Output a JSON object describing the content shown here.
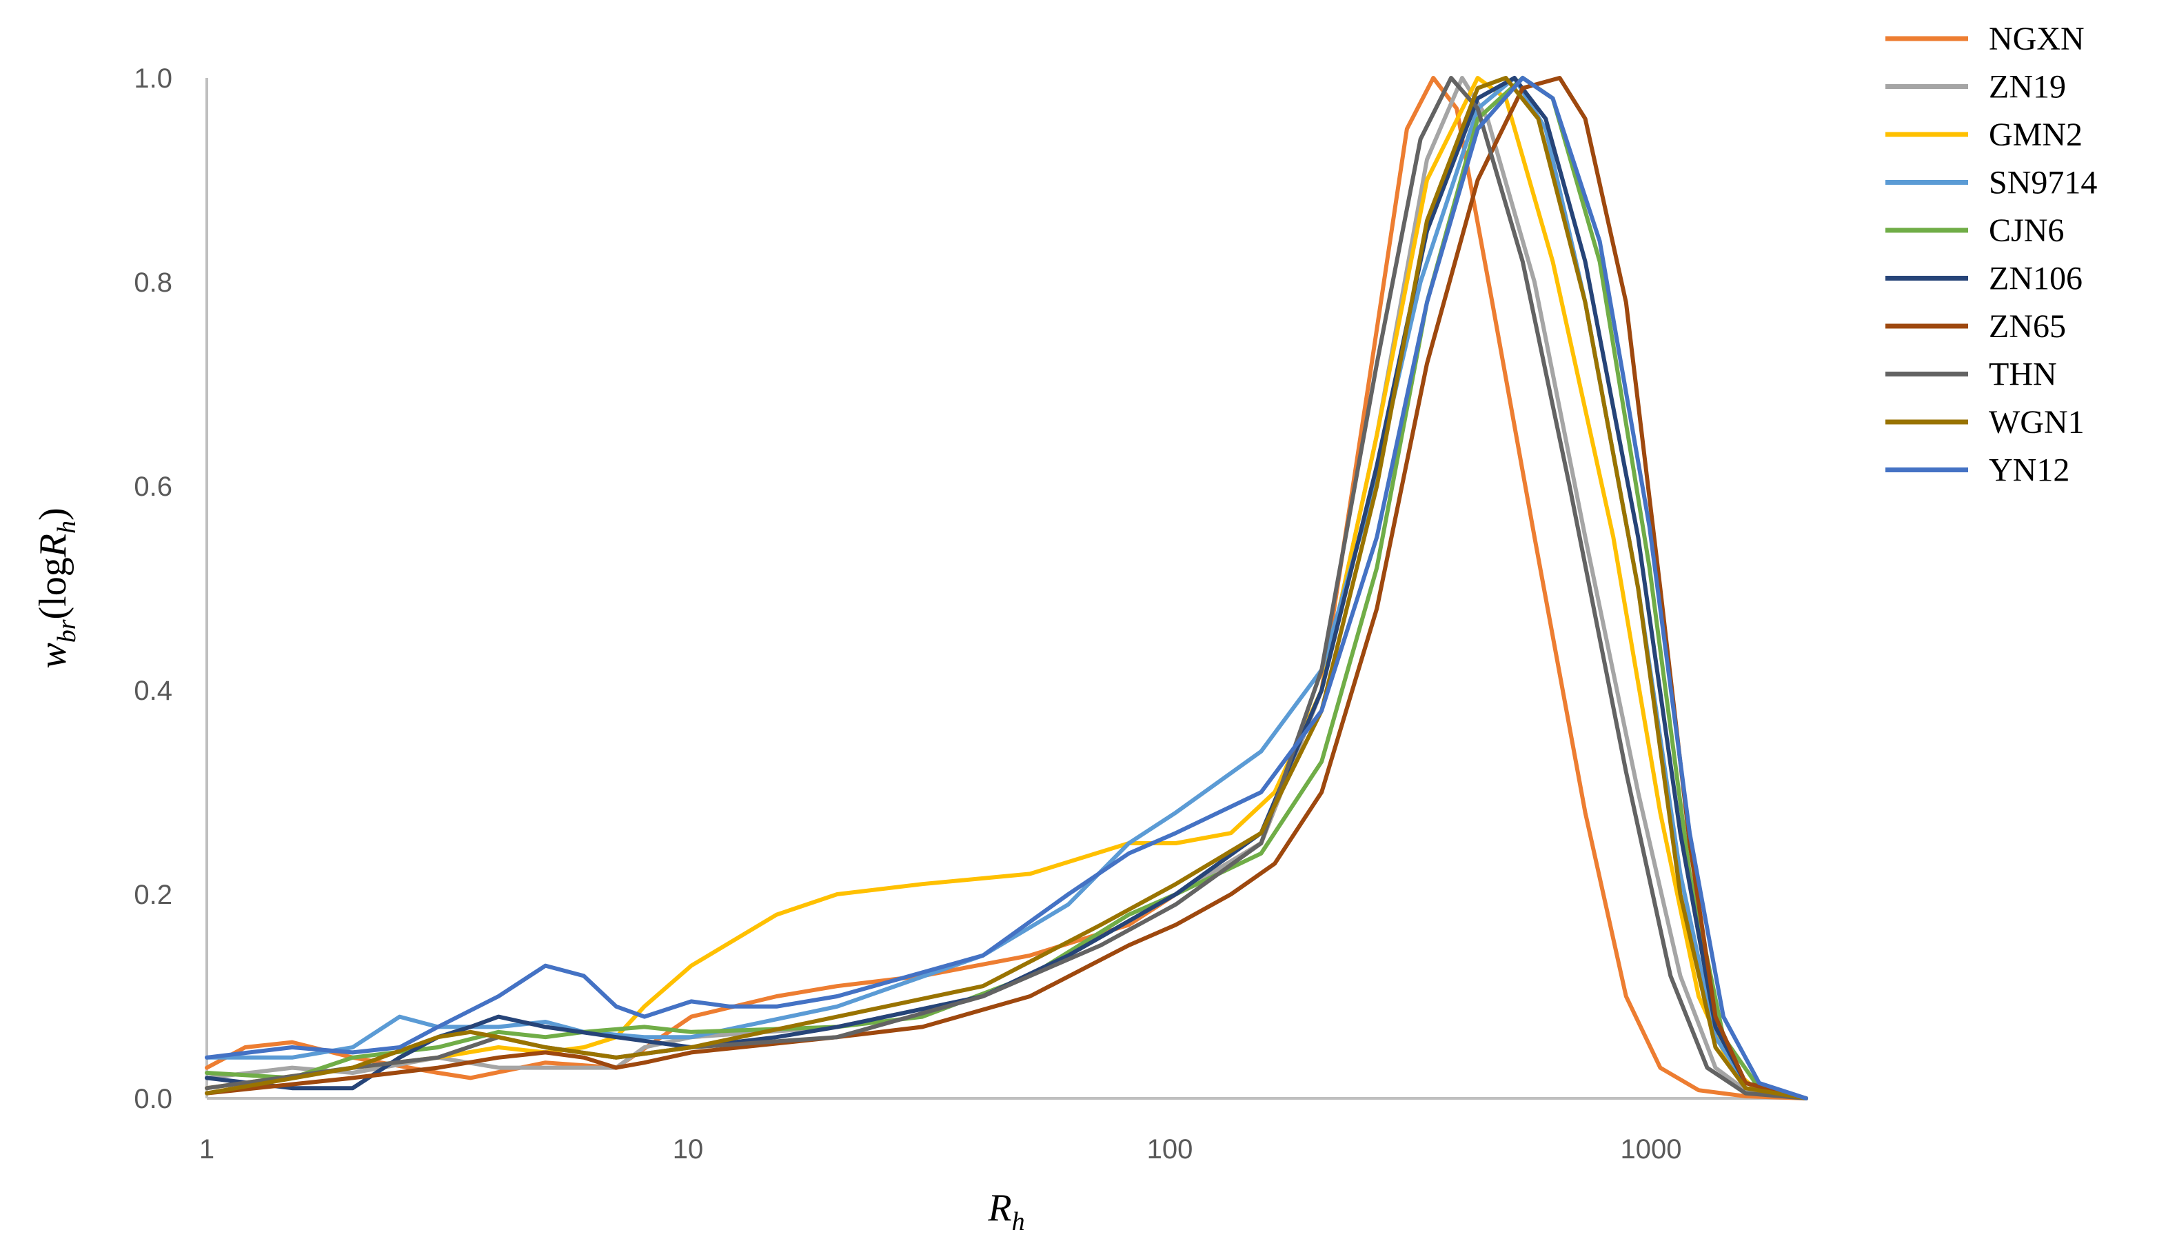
{
  "chart_data": {
    "type": "line",
    "xscale": "log",
    "xlim": [
      1,
      2000
    ],
    "ylim": [
      0,
      1.0
    ],
    "x_ticks": [
      "1",
      "10",
      "100",
      "1000"
    ],
    "y_ticks": [
      "0.0",
      "0.2",
      "0.4",
      "0.6",
      "0.8",
      "1.0"
    ],
    "xlabel": {
      "main": "R",
      "sub": "h"
    },
    "ylabel": {
      "main": "w",
      "sub": "br",
      "mid": "(log",
      "var": "R",
      "var_sub": "h",
      "end": ")"
    },
    "grid": false,
    "legend_position": "top-right",
    "series": [
      {
        "name": "NGXN",
        "color": "#ED7D31",
        "points": [
          [
            1,
            0.03
          ],
          [
            1.2,
            0.05
          ],
          [
            1.5,
            0.055
          ],
          [
            2,
            0.04
          ],
          [
            3,
            0.025
          ],
          [
            3.5,
            0.02
          ],
          [
            5,
            0.035
          ],
          [
            7,
            0.03
          ],
          [
            10,
            0.08
          ],
          [
            15,
            0.1
          ],
          [
            20,
            0.11
          ],
          [
            30,
            0.12
          ],
          [
            50,
            0.14
          ],
          [
            80,
            0.17
          ],
          [
            100,
            0.2
          ],
          [
            150,
            0.25
          ],
          [
            200,
            0.4
          ],
          [
            250,
            0.7
          ],
          [
            300,
            0.95
          ],
          [
            340,
            1.0
          ],
          [
            380,
            0.97
          ],
          [
            450,
            0.78
          ],
          [
            550,
            0.55
          ],
          [
            700,
            0.28
          ],
          [
            850,
            0.1
          ],
          [
            1000,
            0.03
          ],
          [
            1200,
            0.008
          ],
          [
            1500,
            0.002
          ],
          [
            2000,
            0
          ]
        ]
      },
      {
        "name": "ZN19",
        "color": "#A5A5A5",
        "points": [
          [
            1,
            0.02
          ],
          [
            1.5,
            0.03
          ],
          [
            2,
            0.025
          ],
          [
            3,
            0.04
          ],
          [
            4,
            0.03
          ],
          [
            5,
            0.03
          ],
          [
            7,
            0.03
          ],
          [
            8,
            0.05
          ],
          [
            10,
            0.06
          ],
          [
            20,
            0.07
          ],
          [
            40,
            0.1
          ],
          [
            60,
            0.14
          ],
          [
            100,
            0.2
          ],
          [
            150,
            0.25
          ],
          [
            200,
            0.4
          ],
          [
            260,
            0.65
          ],
          [
            330,
            0.92
          ],
          [
            390,
            1.0
          ],
          [
            440,
            0.96
          ],
          [
            550,
            0.8
          ],
          [
            700,
            0.55
          ],
          [
            900,
            0.3
          ],
          [
            1100,
            0.12
          ],
          [
            1300,
            0.03
          ],
          [
            1500,
            0.008
          ],
          [
            2000,
            0
          ]
        ]
      },
      {
        "name": "GMN2",
        "color": "#FFC000",
        "points": [
          [
            1,
            0.01
          ],
          [
            2,
            0.03
          ],
          [
            3,
            0.04
          ],
          [
            4,
            0.05
          ],
          [
            5,
            0.045
          ],
          [
            6,
            0.05
          ],
          [
            7,
            0.06
          ],
          [
            8,
            0.09
          ],
          [
            10,
            0.13
          ],
          [
            15,
            0.18
          ],
          [
            20,
            0.2
          ],
          [
            30,
            0.21
          ],
          [
            50,
            0.22
          ],
          [
            80,
            0.25
          ],
          [
            100,
            0.25
          ],
          [
            130,
            0.26
          ],
          [
            160,
            0.3
          ],
          [
            200,
            0.4
          ],
          [
            260,
            0.65
          ],
          [
            330,
            0.9
          ],
          [
            420,
            1.0
          ],
          [
            480,
            0.98
          ],
          [
            600,
            0.82
          ],
          [
            800,
            0.55
          ],
          [
            1000,
            0.28
          ],
          [
            1200,
            0.1
          ],
          [
            1400,
            0.03
          ],
          [
            1600,
            0.006
          ],
          [
            2000,
            0
          ]
        ]
      },
      {
        "name": "SN9714",
        "color": "#5B9BD5",
        "points": [
          [
            1,
            0.04
          ],
          [
            1.5,
            0.04
          ],
          [
            2,
            0.05
          ],
          [
            2.5,
            0.08
          ],
          [
            3,
            0.07
          ],
          [
            4,
            0.07
          ],
          [
            5,
            0.075
          ],
          [
            6,
            0.065
          ],
          [
            8,
            0.06
          ],
          [
            10,
            0.06
          ],
          [
            20,
            0.09
          ],
          [
            40,
            0.14
          ],
          [
            60,
            0.19
          ],
          [
            80,
            0.25
          ],
          [
            100,
            0.28
          ],
          [
            150,
            0.34
          ],
          [
            200,
            0.42
          ],
          [
            250,
            0.58
          ],
          [
            320,
            0.8
          ],
          [
            420,
            0.97
          ],
          [
            500,
            1.0
          ],
          [
            580,
            0.95
          ],
          [
            700,
            0.78
          ],
          [
            900,
            0.5
          ],
          [
            1100,
            0.22
          ],
          [
            1300,
            0.06
          ],
          [
            1500,
            0.015
          ],
          [
            2000,
            0
          ]
        ]
      },
      {
        "name": "CJN6",
        "color": "#70AD47",
        "points": [
          [
            1,
            0.025
          ],
          [
            1.5,
            0.02
          ],
          [
            2,
            0.04
          ],
          [
            3,
            0.05
          ],
          [
            4,
            0.065
          ],
          [
            5,
            0.06
          ],
          [
            6,
            0.065
          ],
          [
            8,
            0.07
          ],
          [
            10,
            0.065
          ],
          [
            20,
            0.07
          ],
          [
            30,
            0.08
          ],
          [
            50,
            0.12
          ],
          [
            80,
            0.18
          ],
          [
            100,
            0.2
          ],
          [
            150,
            0.24
          ],
          [
            200,
            0.33
          ],
          [
            260,
            0.52
          ],
          [
            330,
            0.78
          ],
          [
            420,
            0.96
          ],
          [
            520,
            1.0
          ],
          [
            600,
            0.98
          ],
          [
            750,
            0.82
          ],
          [
            950,
            0.52
          ],
          [
            1150,
            0.22
          ],
          [
            1350,
            0.06
          ],
          [
            1600,
            0.01
          ],
          [
            2000,
            0
          ]
        ]
      },
      {
        "name": "ZN106",
        "color": "#264478",
        "points": [
          [
            1,
            0.02
          ],
          [
            1.5,
            0.01
          ],
          [
            2,
            0.01
          ],
          [
            2.5,
            0.04
          ],
          [
            3,
            0.06
          ],
          [
            3.5,
            0.07
          ],
          [
            4,
            0.08
          ],
          [
            5,
            0.07
          ],
          [
            7,
            0.06
          ],
          [
            10,
            0.05
          ],
          [
            15,
            0.06
          ],
          [
            20,
            0.07
          ],
          [
            40,
            0.1
          ],
          [
            60,
            0.14
          ],
          [
            100,
            0.2
          ],
          [
            150,
            0.26
          ],
          [
            200,
            0.4
          ],
          [
            260,
            0.62
          ],
          [
            330,
            0.85
          ],
          [
            420,
            0.98
          ],
          [
            500,
            1.0
          ],
          [
            580,
            0.96
          ],
          [
            700,
            0.82
          ],
          [
            900,
            0.55
          ],
          [
            1100,
            0.26
          ],
          [
            1300,
            0.07
          ],
          [
            1500,
            0.015
          ],
          [
            2000,
            0
          ]
        ]
      },
      {
        "name": "ZN65",
        "color": "#9E480E",
        "points": [
          [
            1,
            0.005
          ],
          [
            2,
            0.02
          ],
          [
            3,
            0.03
          ],
          [
            4,
            0.04
          ],
          [
            5,
            0.045
          ],
          [
            6,
            0.04
          ],
          [
            7,
            0.03
          ],
          [
            8,
            0.035
          ],
          [
            10,
            0.045
          ],
          [
            20,
            0.06
          ],
          [
            30,
            0.07
          ],
          [
            50,
            0.1
          ],
          [
            80,
            0.15
          ],
          [
            100,
            0.17
          ],
          [
            130,
            0.2
          ],
          [
            160,
            0.23
          ],
          [
            200,
            0.3
          ],
          [
            260,
            0.48
          ],
          [
            330,
            0.72
          ],
          [
            420,
            0.9
          ],
          [
            520,
            0.99
          ],
          [
            620,
            1.0
          ],
          [
            700,
            0.96
          ],
          [
            850,
            0.78
          ],
          [
            1000,
            0.5
          ],
          [
            1150,
            0.25
          ],
          [
            1300,
            0.08
          ],
          [
            1500,
            0.015
          ],
          [
            2000,
            0
          ]
        ]
      },
      {
        "name": "THN",
        "color": "#636363",
        "points": [
          [
            1,
            0.01
          ],
          [
            2,
            0.03
          ],
          [
            3,
            0.04
          ],
          [
            4,
            0.06
          ],
          [
            5,
            0.05
          ],
          [
            7,
            0.04
          ],
          [
            10,
            0.05
          ],
          [
            20,
            0.06
          ],
          [
            40,
            0.1
          ],
          [
            70,
            0.15
          ],
          [
            100,
            0.19
          ],
          [
            150,
            0.25
          ],
          [
            200,
            0.42
          ],
          [
            260,
            0.72
          ],
          [
            320,
            0.94
          ],
          [
            370,
            1.0
          ],
          [
            420,
            0.97
          ],
          [
            520,
            0.82
          ],
          [
            650,
            0.6
          ],
          [
            850,
            0.32
          ],
          [
            1050,
            0.12
          ],
          [
            1250,
            0.03
          ],
          [
            1500,
            0.005
          ],
          [
            2000,
            0
          ]
        ]
      },
      {
        "name": "WGN1",
        "color": "#997300",
        "points": [
          [
            1,
            0.005
          ],
          [
            2,
            0.03
          ],
          [
            3,
            0.06
          ],
          [
            3.5,
            0.065
          ],
          [
            4,
            0.06
          ],
          [
            5,
            0.05
          ],
          [
            7,
            0.04
          ],
          [
            10,
            0.05
          ],
          [
            20,
            0.08
          ],
          [
            40,
            0.11
          ],
          [
            70,
            0.17
          ],
          [
            100,
            0.21
          ],
          [
            150,
            0.26
          ],
          [
            200,
            0.38
          ],
          [
            260,
            0.6
          ],
          [
            330,
            0.86
          ],
          [
            420,
            0.99
          ],
          [
            480,
            1.0
          ],
          [
            560,
            0.96
          ],
          [
            700,
            0.78
          ],
          [
            900,
            0.5
          ],
          [
            1100,
            0.2
          ],
          [
            1300,
            0.05
          ],
          [
            1500,
            0.01
          ],
          [
            2000,
            0
          ]
        ]
      },
      {
        "name": "YN12",
        "color": "#4472C4",
        "points": [
          [
            1,
            0.04
          ],
          [
            1.5,
            0.05
          ],
          [
            2,
            0.045
          ],
          [
            2.5,
            0.05
          ],
          [
            3,
            0.07
          ],
          [
            4,
            0.1
          ],
          [
            5,
            0.13
          ],
          [
            6,
            0.12
          ],
          [
            7,
            0.09
          ],
          [
            8,
            0.08
          ],
          [
            10,
            0.095
          ],
          [
            12,
            0.09
          ],
          [
            15,
            0.09
          ],
          [
            20,
            0.1
          ],
          [
            40,
            0.14
          ],
          [
            60,
            0.2
          ],
          [
            80,
            0.24
          ],
          [
            100,
            0.26
          ],
          [
            150,
            0.3
          ],
          [
            200,
            0.38
          ],
          [
            260,
            0.55
          ],
          [
            330,
            0.78
          ],
          [
            420,
            0.95
          ],
          [
            520,
            1.0
          ],
          [
            600,
            0.98
          ],
          [
            750,
            0.84
          ],
          [
            950,
            0.56
          ],
          [
            1150,
            0.26
          ],
          [
            1350,
            0.08
          ],
          [
            1600,
            0.015
          ],
          [
            2000,
            0
          ]
        ]
      }
    ]
  }
}
